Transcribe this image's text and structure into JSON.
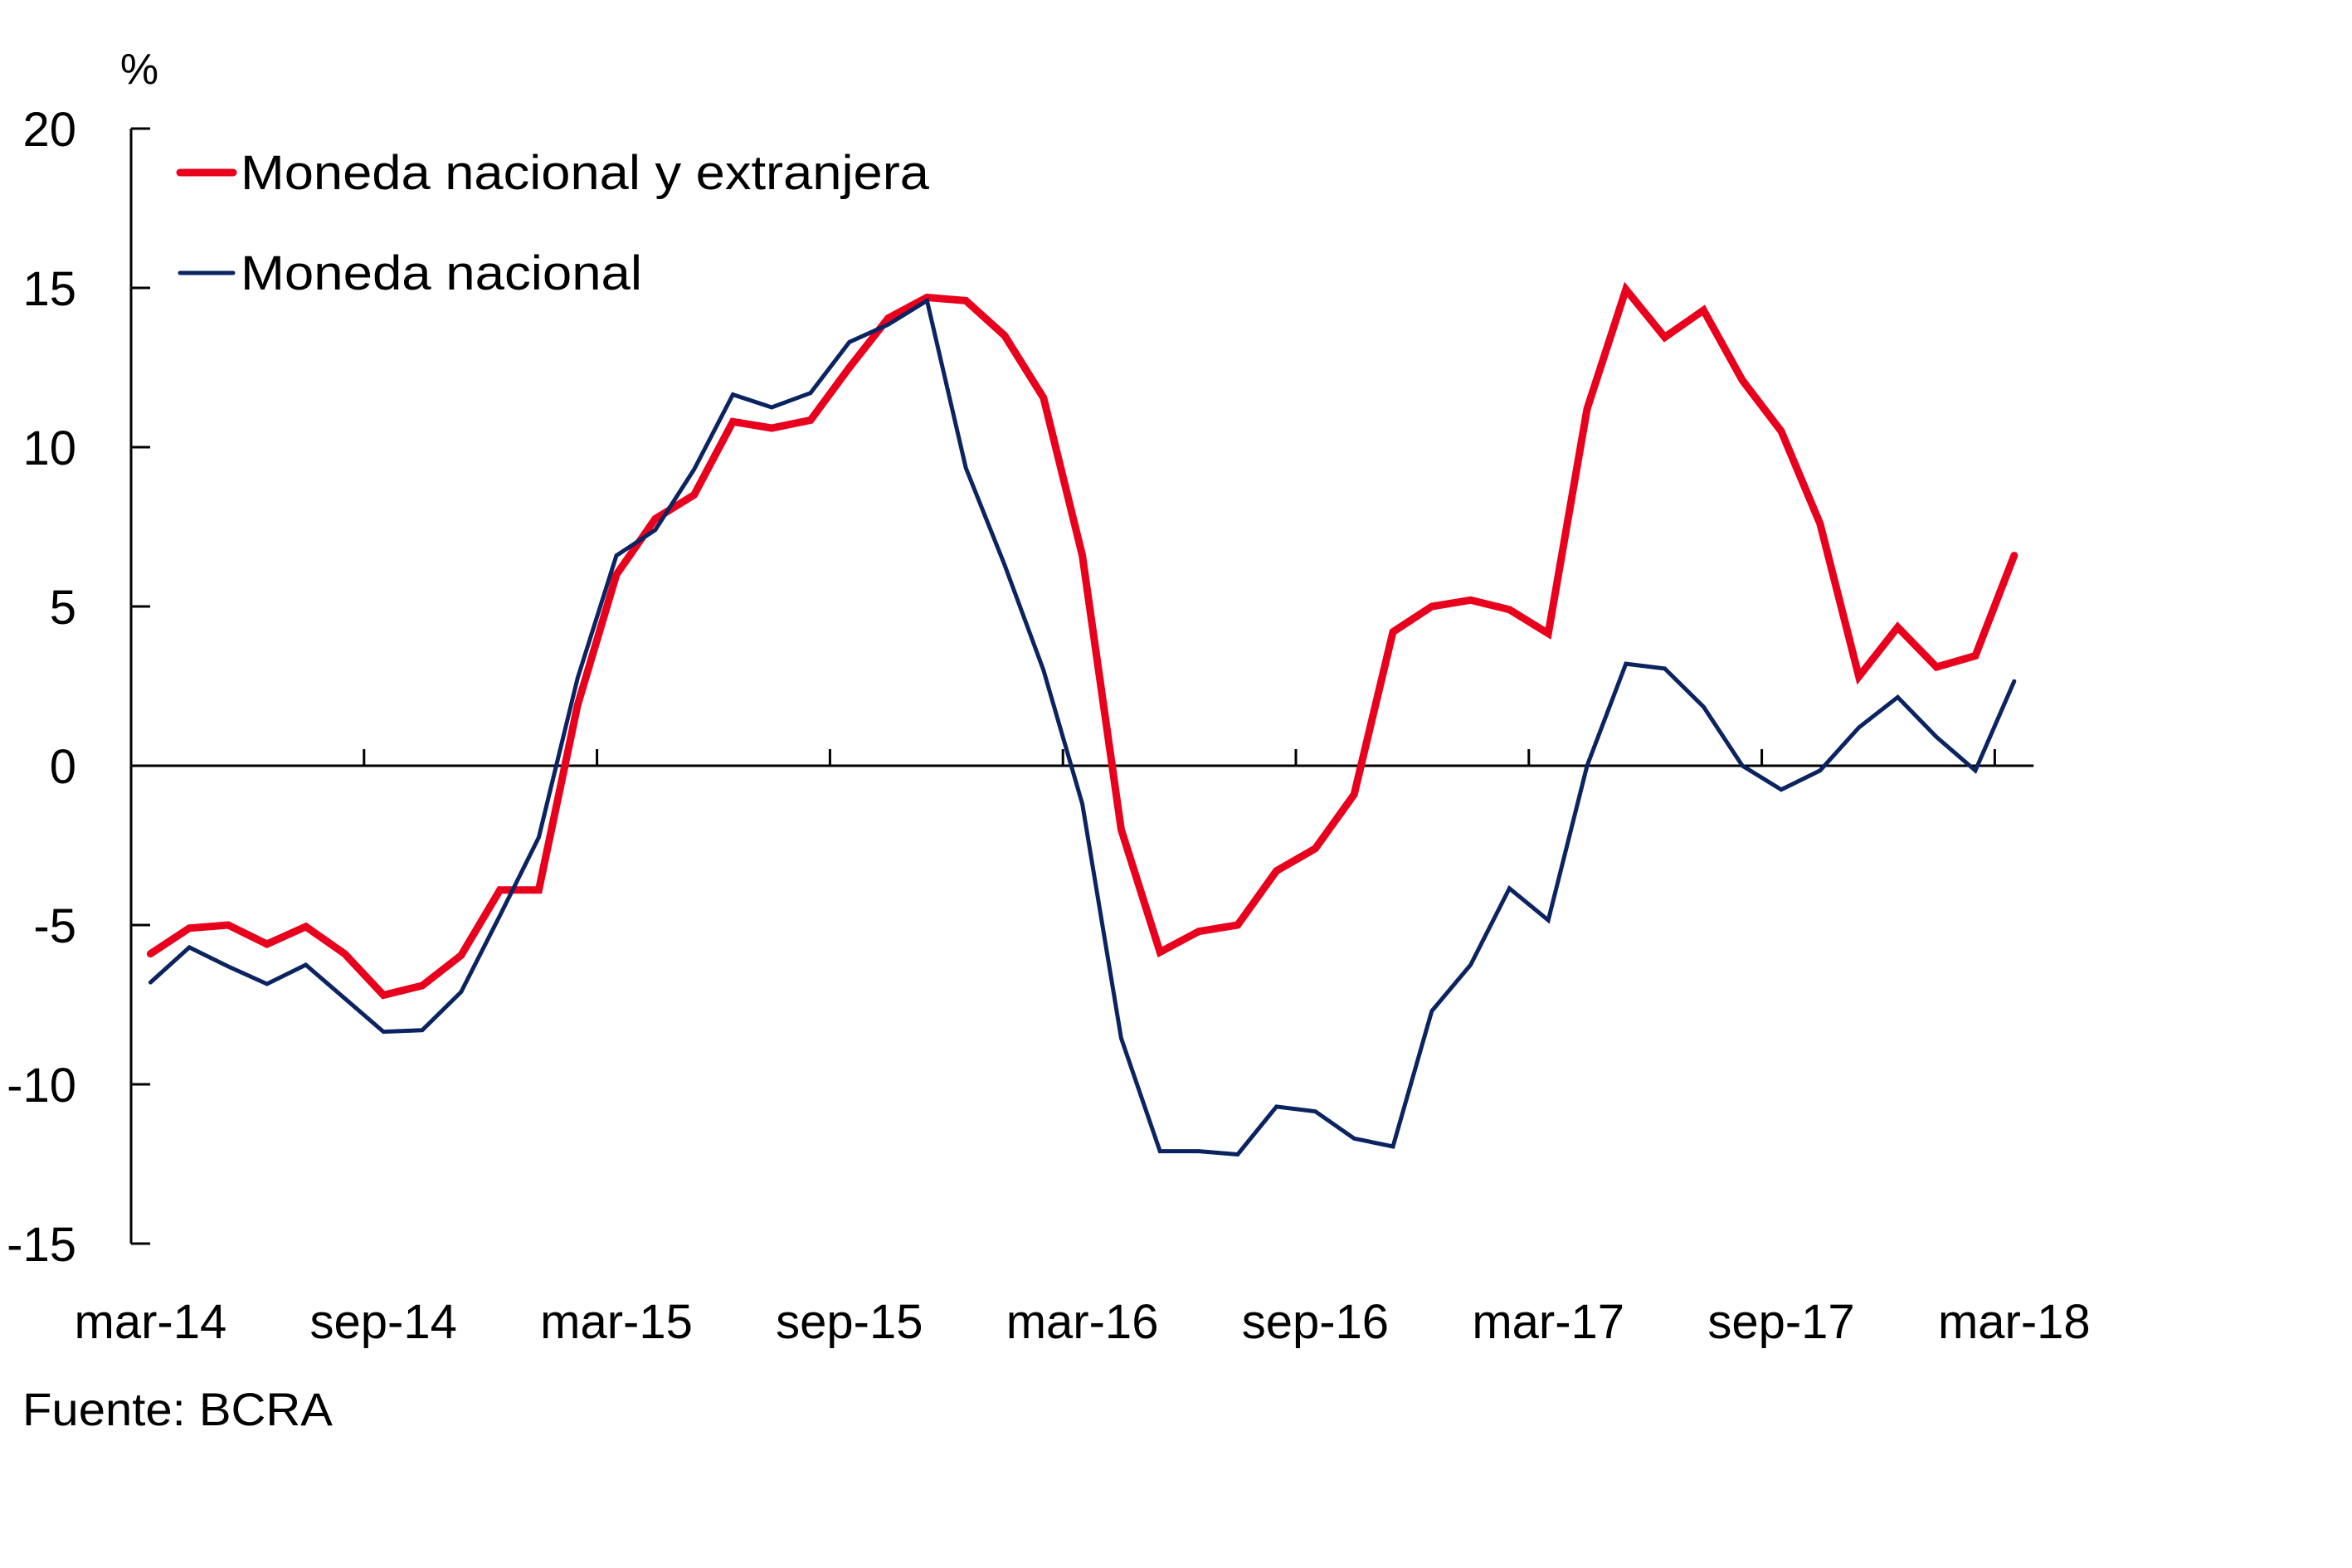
{
  "chart_data": {
    "type": "line",
    "title": "",
    "ylabel": "%",
    "xlabel": "",
    "ylim": [
      -15,
      20
    ],
    "yticks": [
      20,
      15,
      10,
      5,
      0,
      -5,
      -10,
      -15
    ],
    "grid": false,
    "legend_position": "top-left",
    "x": [
      "mar-14",
      "abr-14",
      "may-14",
      "jun-14",
      "jul-14",
      "ago-14",
      "sep-14",
      "oct-14",
      "nov-14",
      "dic-14",
      "ene-15",
      "feb-15",
      "mar-15",
      "abr-15",
      "may-15",
      "jun-15",
      "jul-15",
      "ago-15",
      "sep-15",
      "oct-15",
      "nov-15",
      "dic-15",
      "ene-16",
      "feb-16",
      "mar-16",
      "abr-16",
      "may-16",
      "jun-16",
      "jul-16",
      "ago-16",
      "sep-16",
      "oct-16",
      "nov-16",
      "dic-16",
      "ene-17",
      "feb-17",
      "mar-17",
      "abr-17",
      "may-17",
      "jun-17",
      "jul-17",
      "ago-17",
      "sep-17",
      "oct-17",
      "nov-17",
      "dic-17",
      "ene-18",
      "feb-18",
      "mar-18"
    ],
    "xtick_labels": [
      {
        "index": 0,
        "label": "mar-14"
      },
      {
        "index": 6,
        "label": "sep-14"
      },
      {
        "index": 12,
        "label": "mar-15"
      },
      {
        "index": 18,
        "label": "sep-15"
      },
      {
        "index": 24,
        "label": "mar-16"
      },
      {
        "index": 30,
        "label": "sep-16"
      },
      {
        "index": 36,
        "label": "mar-17"
      },
      {
        "index": 42,
        "label": "sep-17"
      },
      {
        "index": 48,
        "label": "mar-18"
      }
    ],
    "series": [
      {
        "name": "Moneda nacional y extranjera",
        "color": "#E8001C",
        "values": [
          -5.9,
          -5.1,
          -5.0,
          -5.6,
          -5.05,
          -5.9,
          -7.2,
          -6.9,
          -5.95,
          -3.9,
          -3.9,
          1.9,
          6.0,
          7.75,
          8.5,
          10.8,
          10.6,
          10.85,
          12.5,
          14.05,
          14.7,
          14.6,
          13.5,
          11.55,
          6.6,
          -2.0,
          -5.85,
          -5.2,
          -5.0,
          -3.3,
          -2.6,
          -0.9,
          4.2,
          5.0,
          5.2,
          4.9,
          4.15,
          11.2,
          14.95,
          13.45,
          14.3,
          12.1,
          10.5,
          7.6,
          2.8,
          4.35,
          3.1,
          3.45,
          6.6
        ]
      },
      {
        "name": "Moneda nacional",
        "color": "#0B2461",
        "values": [
          -6.8,
          -5.7,
          -6.3,
          -6.85,
          -6.25,
          -7.3,
          -8.35,
          -8.3,
          -7.1,
          -4.7,
          -2.25,
          2.75,
          6.6,
          7.4,
          9.3,
          11.65,
          11.25,
          11.7,
          13.3,
          13.85,
          14.6,
          9.35,
          6.3,
          3.0,
          -1.2,
          -8.55,
          -12.1,
          -12.1,
          -12.2,
          -10.7,
          -10.85,
          -11.7,
          -11.95,
          -7.7,
          -6.25,
          -3.85,
          -4.85,
          0.0,
          3.2,
          3.05,
          1.85,
          0.0,
          -0.75,
          -0.15,
          1.2,
          2.15,
          0.9,
          -0.15,
          2.65
        ]
      }
    ],
    "source": "Fuente: BCRA"
  }
}
